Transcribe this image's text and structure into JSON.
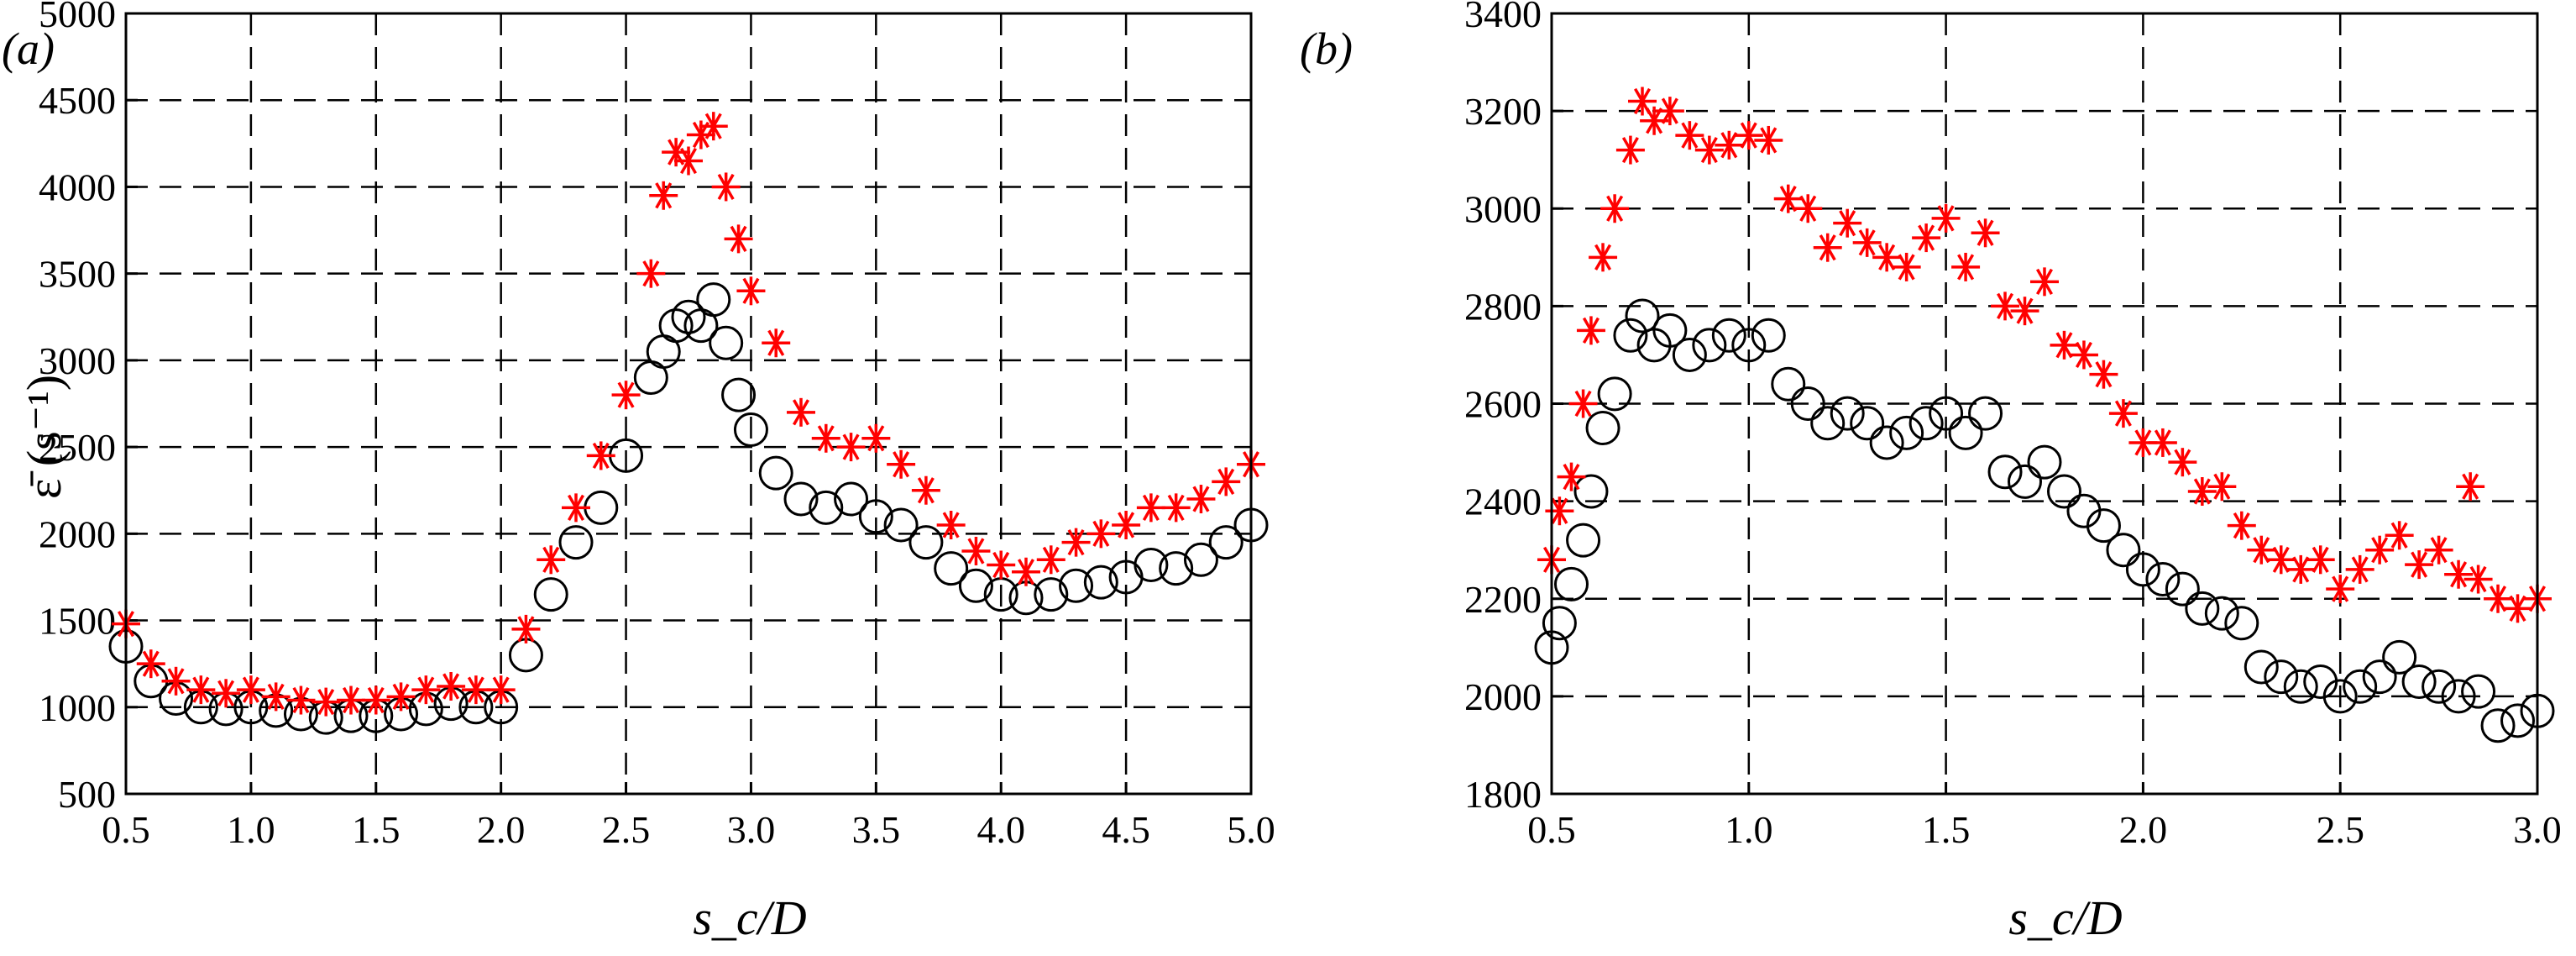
{
  "chart_data": [
    {
      "type": "scatter",
      "panel_label": "(a)",
      "ylabel": "ε̄ (s⁻¹)",
      "xlabel": "s_c/D",
      "xlim": [
        0.5,
        5.0
      ],
      "ylim": [
        500,
        5000
      ],
      "xticks": [
        "0.5",
        "1.0",
        "1.5",
        "2.0",
        "2.5",
        "3.0",
        "3.5",
        "4.0",
        "4.5",
        "5.0"
      ],
      "yticks": [
        "500",
        "1000",
        "1500",
        "2000",
        "2500",
        "3000",
        "3500",
        "4000",
        "4500",
        "5000"
      ],
      "grid": true,
      "series": [
        {
          "name": "black circles",
          "marker": "circle",
          "color": "#000000",
          "x": [
            0.5,
            0.6,
            0.7,
            0.8,
            0.9,
            1.0,
            1.1,
            1.2,
            1.3,
            1.4,
            1.5,
            1.6,
            1.7,
            1.8,
            1.9,
            2.0,
            2.1,
            2.2,
            2.3,
            2.4,
            2.5,
            2.6,
            2.65,
            2.7,
            2.75,
            2.8,
            2.85,
            2.9,
            2.95,
            3.0,
            3.1,
            3.2,
            3.3,
            3.4,
            3.5,
            3.6,
            3.7,
            3.8,
            3.9,
            4.0,
            4.1,
            4.2,
            4.3,
            4.4,
            4.5,
            4.6,
            4.7,
            4.8,
            4.9,
            5.0
          ],
          "y": [
            1350,
            1150,
            1050,
            1000,
            990,
            1000,
            980,
            960,
            940,
            950,
            950,
            960,
            990,
            1020,
            1000,
            1000,
            1300,
            1650,
            1950,
            2150,
            2450,
            2900,
            3050,
            3200,
            3250,
            3200,
            3350,
            3100,
            2800,
            2600,
            2350,
            2200,
            2150,
            2200,
            2100,
            2050,
            1950,
            1800,
            1700,
            1650,
            1630,
            1650,
            1700,
            1720,
            1750,
            1820,
            1800,
            1850,
            1950,
            2050
          ]
        },
        {
          "name": "red asterisks",
          "marker": "asterisk",
          "color": "#ff0000",
          "x": [
            0.5,
            0.6,
            0.7,
            0.8,
            0.9,
            1.0,
            1.1,
            1.2,
            1.3,
            1.4,
            1.5,
            1.6,
            1.7,
            1.8,
            1.9,
            2.0,
            2.1,
            2.2,
            2.3,
            2.4,
            2.5,
            2.6,
            2.65,
            2.7,
            2.75,
            2.8,
            2.85,
            2.9,
            2.95,
            3.0,
            3.1,
            3.2,
            3.3,
            3.4,
            3.5,
            3.6,
            3.7,
            3.8,
            3.9,
            4.0,
            4.1,
            4.2,
            4.3,
            4.4,
            4.5,
            4.6,
            4.7,
            4.8,
            4.9,
            5.0
          ],
          "y": [
            1480,
            1250,
            1150,
            1100,
            1080,
            1100,
            1060,
            1040,
            1030,
            1040,
            1040,
            1060,
            1100,
            1120,
            1100,
            1100,
            1450,
            1850,
            2150,
            2450,
            2800,
            3500,
            3950,
            4200,
            4150,
            4300,
            4350,
            4000,
            3700,
            3400,
            3100,
            2700,
            2550,
            2500,
            2550,
            2400,
            2250,
            2050,
            1900,
            1820,
            1780,
            1850,
            1950,
            2000,
            2050,
            2150,
            2150,
            2200,
            2300,
            2400
          ]
        }
      ]
    },
    {
      "type": "scatter",
      "panel_label": "(b)",
      "ylabel": "",
      "xlabel": "s_c/D",
      "xlim": [
        0.5,
        3.0
      ],
      "ylim": [
        1800,
        3400
      ],
      "xticks": [
        "0.5",
        "1.0",
        "1.5",
        "2.0",
        "2.5",
        "3.0"
      ],
      "yticks": [
        "1800",
        "2000",
        "2200",
        "2400",
        "2600",
        "2800",
        "3000",
        "3200",
        "3400"
      ],
      "grid": true,
      "series": [
        {
          "name": "black circles",
          "marker": "circle",
          "color": "#000000",
          "x": [
            0.5,
            0.52,
            0.55,
            0.58,
            0.6,
            0.63,
            0.66,
            0.7,
            0.73,
            0.76,
            0.8,
            0.85,
            0.9,
            0.95,
            1.0,
            1.05,
            1.1,
            1.15,
            1.2,
            1.25,
            1.3,
            1.35,
            1.4,
            1.45,
            1.5,
            1.55,
            1.6,
            1.65,
            1.7,
            1.75,
            1.8,
            1.85,
            1.9,
            1.95,
            2.0,
            2.05,
            2.1,
            2.15,
            2.2,
            2.25,
            2.3,
            2.35,
            2.4,
            2.45,
            2.5,
            2.55,
            2.6,
            2.65,
            2.7,
            2.75,
            2.8,
            2.85,
            2.9,
            2.95,
            3.0
          ],
          "y": [
            2100,
            2150,
            2230,
            2320,
            2420,
            2550,
            2620,
            2740,
            2780,
            2720,
            2750,
            2700,
            2720,
            2740,
            2720,
            2740,
            2640,
            2600,
            2560,
            2580,
            2560,
            2520,
            2540,
            2560,
            2580,
            2540,
            2580,
            2460,
            2440,
            2480,
            2420,
            2380,
            2350,
            2300,
            2260,
            2240,
            2220,
            2180,
            2170,
            2150,
            2060,
            2040,
            2020,
            2030,
            2000,
            2020,
            2040,
            2080,
            2030,
            2020,
            2000,
            2010,
            1940,
            1950,
            1970
          ]
        },
        {
          "name": "red asterisks",
          "marker": "asterisk",
          "color": "#ff0000",
          "x": [
            0.5,
            0.52,
            0.55,
            0.58,
            0.6,
            0.63,
            0.66,
            0.7,
            0.73,
            0.76,
            0.8,
            0.85,
            0.9,
            0.95,
            1.0,
            1.05,
            1.1,
            1.15,
            1.2,
            1.25,
            1.3,
            1.35,
            1.4,
            1.45,
            1.5,
            1.55,
            1.6,
            1.65,
            1.7,
            1.75,
            1.8,
            1.85,
            1.9,
            1.95,
            2.0,
            2.05,
            2.1,
            2.15,
            2.2,
            2.25,
            2.3,
            2.35,
            2.4,
            2.45,
            2.5,
            2.55,
            2.6,
            2.65,
            2.7,
            2.75,
            2.8,
            2.83,
            2.85,
            2.9,
            2.95,
            3.0
          ],
          "y": [
            2280,
            2380,
            2450,
            2600,
            2750,
            2900,
            3000,
            3120,
            3220,
            3180,
            3200,
            3150,
            3120,
            3130,
            3150,
            3140,
            3020,
            3000,
            2920,
            2970,
            2930,
            2900,
            2880,
            2940,
            2980,
            2880,
            2950,
            2800,
            2790,
            2850,
            2720,
            2700,
            2660,
            2580,
            2520,
            2520,
            2480,
            2420,
            2430,
            2350,
            2300,
            2280,
            2260,
            2280,
            2220,
            2260,
            2300,
            2330,
            2270,
            2300,
            2250,
            2430,
            2240,
            2200,
            2180,
            2200
          ]
        }
      ]
    }
  ]
}
